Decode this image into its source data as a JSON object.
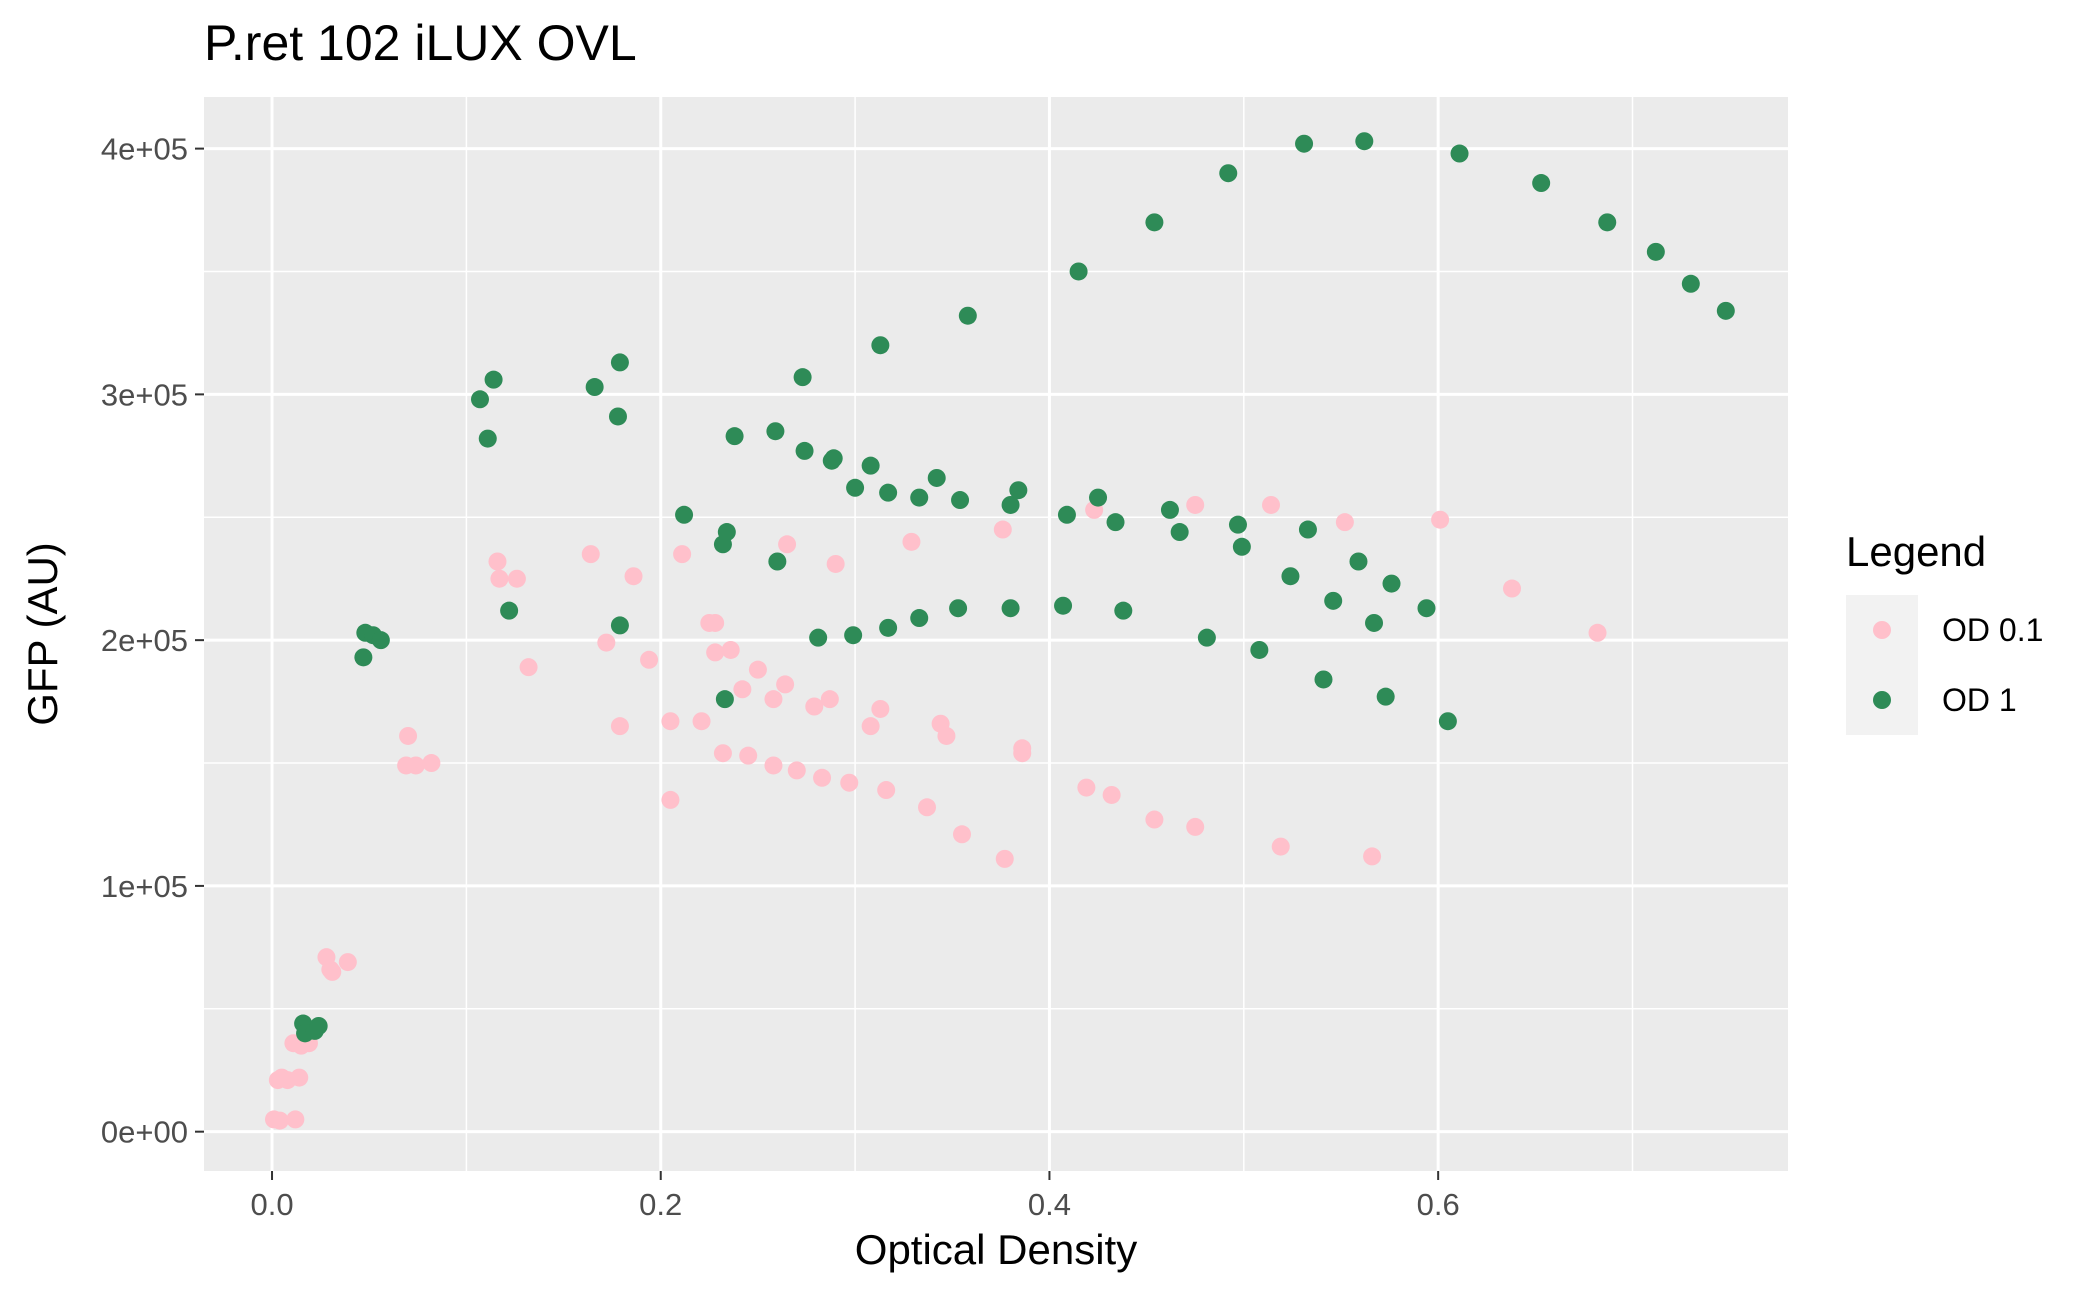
{
  "chart_data": {
    "type": "scatter",
    "title": "P.ret 102 iLUX OVL",
    "xlabel": "Optical Density",
    "ylabel": "GFP (AU)",
    "xlim": [
      -0.035,
      0.78
    ],
    "ylim": [
      -16000,
      421000
    ],
    "x_ticks": [
      0.0,
      0.2,
      0.4,
      0.6
    ],
    "x_tick_labels": [
      "0.0",
      "0.2",
      "0.4",
      "0.6"
    ],
    "y_ticks": [
      0,
      100000,
      200000,
      300000,
      400000
    ],
    "y_tick_labels": [
      "0e+00",
      "1e+05",
      "2e+05",
      "3e+05",
      "4e+05"
    ],
    "grid": true,
    "panel_background": "#ebebeb",
    "legend": {
      "title": "Legend",
      "position": "right"
    },
    "series": [
      {
        "name": "OD 0.1",
        "color": "#ffc0cb",
        "points": [
          [
            0.001,
            5000
          ],
          [
            0.004,
            4500
          ],
          [
            0.012,
            5000
          ],
          [
            0.003,
            21000
          ],
          [
            0.005,
            22000
          ],
          [
            0.008,
            21000
          ],
          [
            0.014,
            22000
          ],
          [
            0.011,
            36000
          ],
          [
            0.015,
            35000
          ],
          [
            0.019,
            36000
          ],
          [
            0.028,
            71000
          ],
          [
            0.03,
            66000
          ],
          [
            0.031,
            65000
          ],
          [
            0.039,
            69000
          ],
          [
            0.07,
            161000
          ],
          [
            0.069,
            149000
          ],
          [
            0.074,
            149000
          ],
          [
            0.082,
            150000
          ],
          [
            0.116,
            232000
          ],
          [
            0.117,
            225000
          ],
          [
            0.126,
            225000
          ],
          [
            0.132,
            189000
          ],
          [
            0.164,
            235000
          ],
          [
            0.172,
            199000
          ],
          [
            0.179,
            165000
          ],
          [
            0.186,
            226000
          ],
          [
            0.194,
            192000
          ],
          [
            0.205,
            135000
          ],
          [
            0.205,
            167000
          ],
          [
            0.211,
            235000
          ],
          [
            0.221,
            167000
          ],
          [
            0.225,
            207000
          ],
          [
            0.228,
            207000
          ],
          [
            0.228,
            195000
          ],
          [
            0.232,
            154000
          ],
          [
            0.236,
            196000
          ],
          [
            0.242,
            180000
          ],
          [
            0.245,
            153000
          ],
          [
            0.25,
            188000
          ],
          [
            0.258,
            149000
          ],
          [
            0.258,
            176000
          ],
          [
            0.265,
            239000
          ],
          [
            0.264,
            182000
          ],
          [
            0.27,
            147000
          ],
          [
            0.279,
            173000
          ],
          [
            0.283,
            144000
          ],
          [
            0.287,
            176000
          ],
          [
            0.29,
            231000
          ],
          [
            0.297,
            142000
          ],
          [
            0.308,
            165000
          ],
          [
            0.313,
            172000
          ],
          [
            0.316,
            139000
          ],
          [
            0.329,
            240000
          ],
          [
            0.337,
            132000
          ],
          [
            0.344,
            166000
          ],
          [
            0.347,
            161000
          ],
          [
            0.355,
            121000
          ],
          [
            0.376,
            245000
          ],
          [
            0.377,
            111000
          ],
          [
            0.386,
            154000
          ],
          [
            0.386,
            156000
          ],
          [
            0.419,
            140000
          ],
          [
            0.423,
            253000
          ],
          [
            0.432,
            137000
          ],
          [
            0.454,
            127000
          ],
          [
            0.475,
            255000
          ],
          [
            0.475,
            124000
          ],
          [
            0.519,
            116000
          ],
          [
            0.514,
            255000
          ],
          [
            0.552,
            248000
          ],
          [
            0.566,
            112000
          ],
          [
            0.601,
            249000
          ],
          [
            0.638,
            221000
          ],
          [
            0.682,
            203000
          ]
        ]
      },
      {
        "name": "OD 1",
        "color": "#2e8b57",
        "points": [
          [
            0.016,
            44000
          ],
          [
            0.017,
            40000
          ],
          [
            0.022,
            41000
          ],
          [
            0.024,
            43000
          ],
          [
            0.047,
            193000
          ],
          [
            0.048,
            203000
          ],
          [
            0.052,
            202000
          ],
          [
            0.056,
            200000
          ],
          [
            0.107,
            298000
          ],
          [
            0.111,
            282000
          ],
          [
            0.114,
            306000
          ],
          [
            0.122,
            212000
          ],
          [
            0.166,
            303000
          ],
          [
            0.178,
            291000
          ],
          [
            0.179,
            313000
          ],
          [
            0.179,
            206000
          ],
          [
            0.212,
            251000
          ],
          [
            0.232,
            239000
          ],
          [
            0.234,
            244000
          ],
          [
            0.233,
            176000
          ],
          [
            0.238,
            283000
          ],
          [
            0.259,
            285000
          ],
          [
            0.26,
            232000
          ],
          [
            0.273,
            307000
          ],
          [
            0.274,
            277000
          ],
          [
            0.281,
            201000
          ],
          [
            0.288,
            273000
          ],
          [
            0.289,
            274000
          ],
          [
            0.299,
            202000
          ],
          [
            0.3,
            262000
          ],
          [
            0.308,
            271000
          ],
          [
            0.313,
            320000
          ],
          [
            0.317,
            205000
          ],
          [
            0.317,
            260000
          ],
          [
            0.333,
            209000
          ],
          [
            0.333,
            258000
          ],
          [
            0.342,
            266000
          ],
          [
            0.353,
            213000
          ],
          [
            0.354,
            257000
          ],
          [
            0.358,
            332000
          ],
          [
            0.38,
            213000
          ],
          [
            0.38,
            255000
          ],
          [
            0.384,
            261000
          ],
          [
            0.407,
            214000
          ],
          [
            0.409,
            251000
          ],
          [
            0.415,
            350000
          ],
          [
            0.425,
            258000
          ],
          [
            0.434,
            248000
          ],
          [
            0.438,
            212000
          ],
          [
            0.454,
            370000
          ],
          [
            0.462,
            253000
          ],
          [
            0.467,
            244000
          ],
          [
            0.481,
            201000
          ],
          [
            0.492,
            390000
          ],
          [
            0.497,
            247000
          ],
          [
            0.499,
            238000
          ],
          [
            0.508,
            196000
          ],
          [
            0.524,
            226000
          ],
          [
            0.531,
            402000
          ],
          [
            0.533,
            245000
          ],
          [
            0.546,
            216000
          ],
          [
            0.541,
            184000
          ],
          [
            0.559,
            232000
          ],
          [
            0.562,
            403000
          ],
          [
            0.567,
            207000
          ],
          [
            0.573,
            177000
          ],
          [
            0.576,
            223000
          ],
          [
            0.594,
            213000
          ],
          [
            0.605,
            167000
          ],
          [
            0.611,
            398000
          ],
          [
            0.653,
            386000
          ],
          [
            0.687,
            370000
          ],
          [
            0.712,
            358000
          ],
          [
            0.73,
            345000
          ],
          [
            0.748,
            334000
          ]
        ]
      }
    ]
  }
}
